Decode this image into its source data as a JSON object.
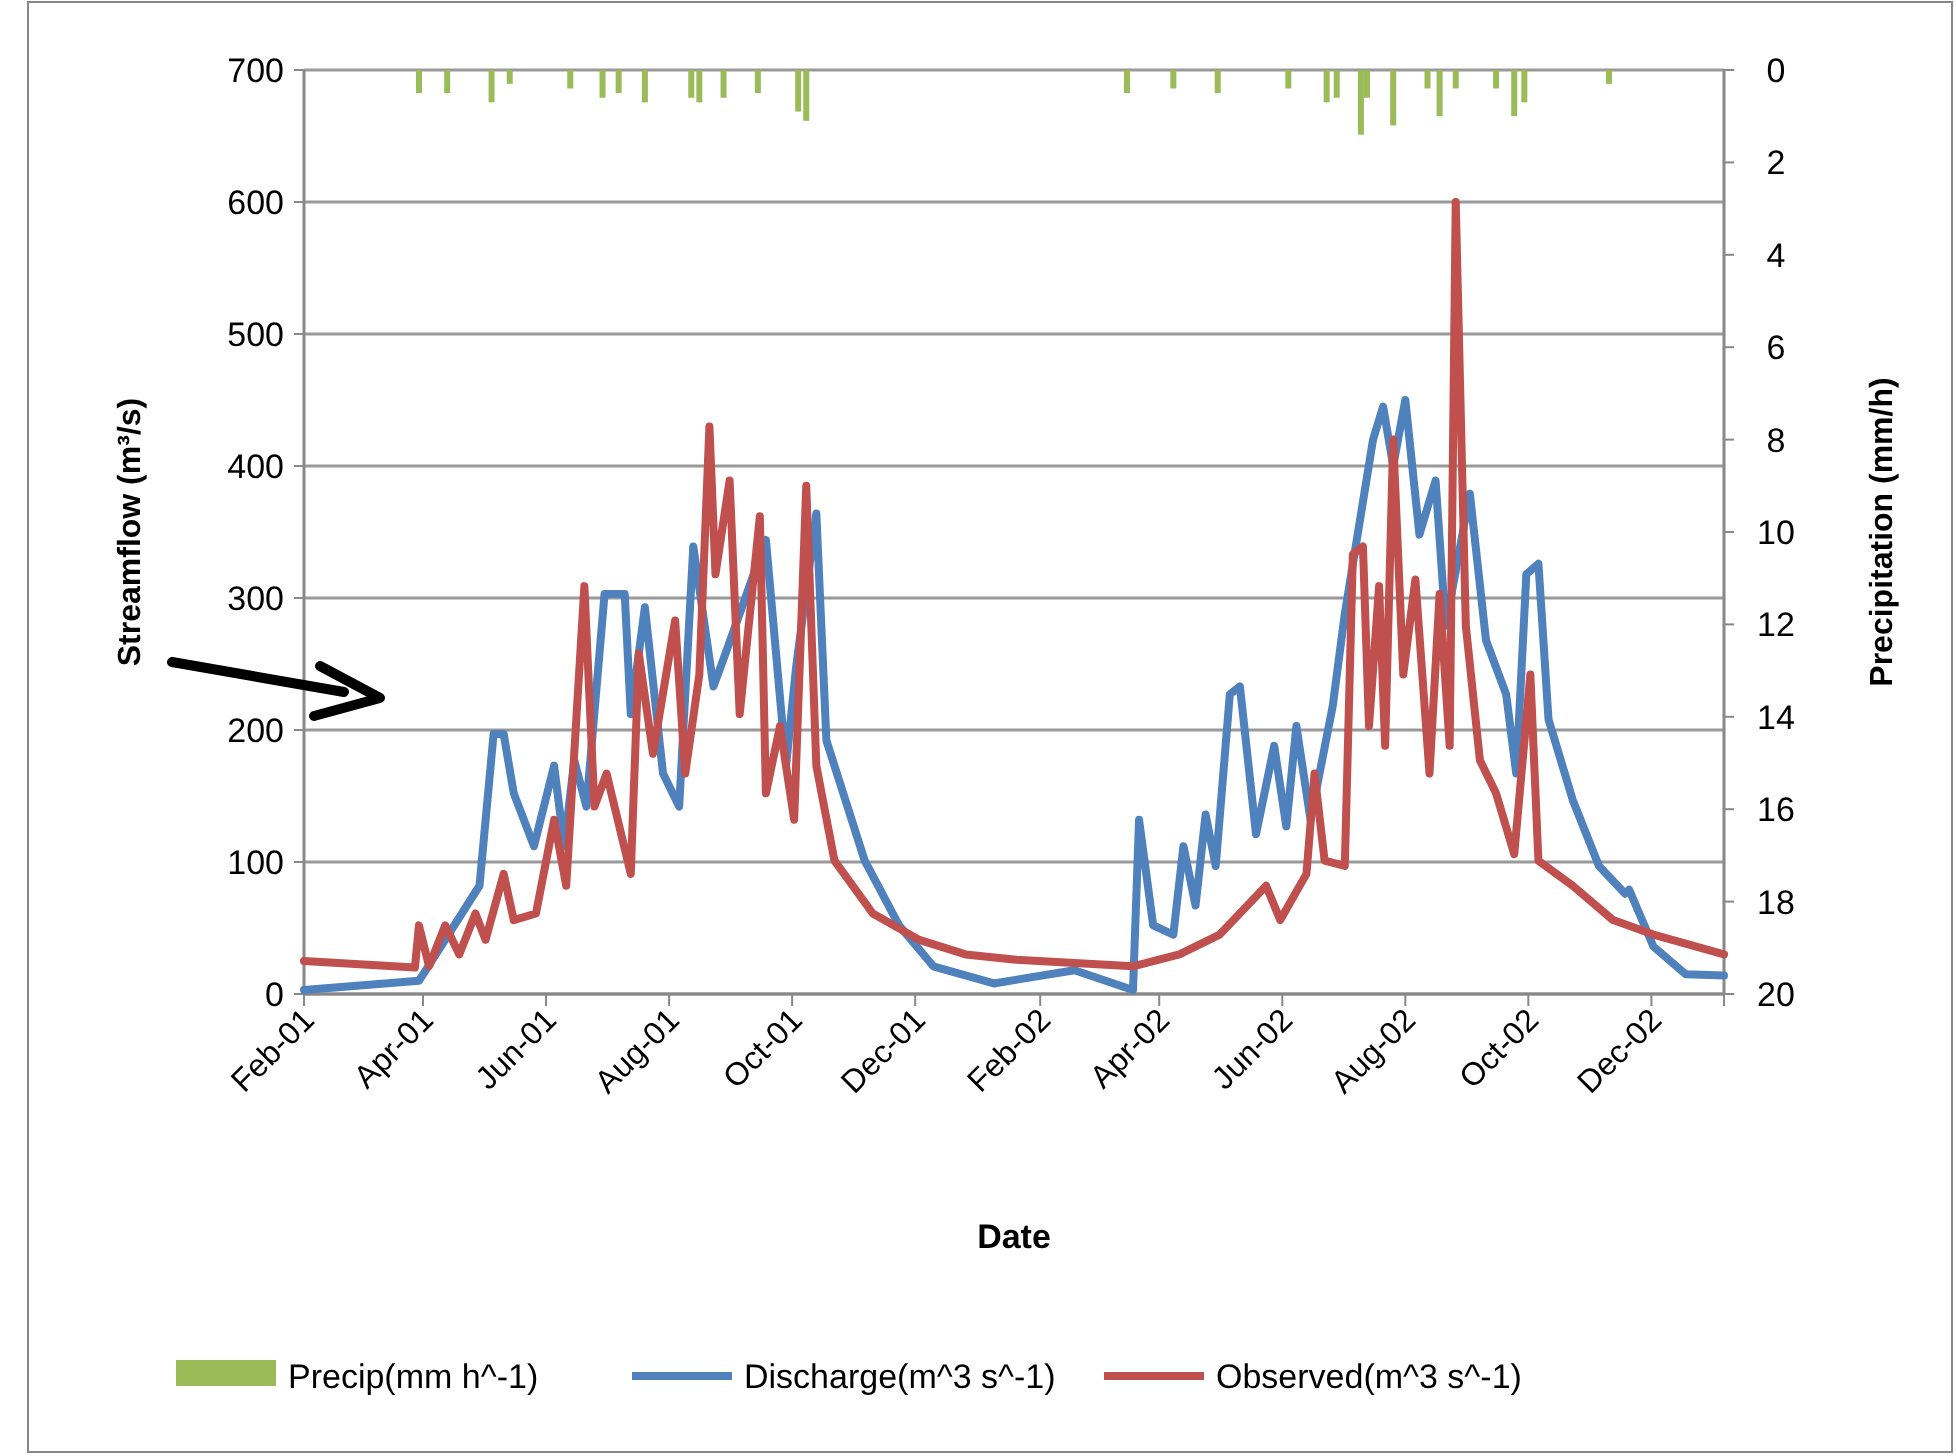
{
  "chart_data": {
    "type": "line",
    "xlabel": "Date",
    "ylabel": "Streamflow (m³/s)",
    "y2label": "Precipitation (mm/h)",
    "xlim": [
      "2001-02-01",
      "2003-01-06"
    ],
    "xticks": [
      {
        "value": "2001-02-01",
        "label": "Feb-01"
      },
      {
        "value": "2001-04-01",
        "label": "Apr-01"
      },
      {
        "value": "2001-06-01",
        "label": "Jun-01"
      },
      {
        "value": "2001-08-01",
        "label": "Aug-01"
      },
      {
        "value": "2001-10-01",
        "label": "Oct-01"
      },
      {
        "value": "2001-12-01",
        "label": "Dec-01"
      },
      {
        "value": "2002-02-01",
        "label": "Feb-02"
      },
      {
        "value": "2002-04-01",
        "label": "Apr-02"
      },
      {
        "value": "2002-06-01",
        "label": "Jun-02"
      },
      {
        "value": "2002-08-01",
        "label": "Aug-02"
      },
      {
        "value": "2002-10-01",
        "label": "Oct-02"
      },
      {
        "value": "2002-12-01",
        "label": "Dec-02"
      }
    ],
    "ylim": [
      0,
      700
    ],
    "yticks": [
      0,
      100,
      200,
      300,
      400,
      500,
      600,
      700
    ],
    "y2lim": [
      20,
      0
    ],
    "y2ticks": [
      0,
      2,
      4,
      6,
      8,
      10,
      12,
      14,
      16,
      18,
      20
    ],
    "grid": "y",
    "legend": "bottom",
    "line_style": "solid",
    "series": [
      {
        "name": "Precip(mm h^-1)",
        "type": "bar",
        "axis": "y2",
        "color": "#9bbb59",
        "x": [
          "2001-03-30",
          "2001-04-13",
          "2001-05-05",
          "2001-05-14",
          "2001-06-13",
          "2001-06-29",
          "2001-07-07",
          "2001-07-20",
          "2001-08-12",
          "2001-08-16",
          "2001-08-28",
          "2001-09-14",
          "2001-10-04",
          "2001-10-08",
          "2002-03-16",
          "2002-04-08",
          "2002-04-30",
          "2002-06-04",
          "2002-06-23",
          "2002-06-28",
          "2002-07-10",
          "2002-07-13",
          "2002-07-26",
          "2002-08-12",
          "2002-08-18",
          "2002-08-26",
          "2002-09-15",
          "2002-09-24",
          "2002-09-29",
          "2002-11-10"
        ],
        "values": [
          0.5,
          0.5,
          0.7,
          0.3,
          0.4,
          0.6,
          0.5,
          0.7,
          0.6,
          0.7,
          0.6,
          0.5,
          0.9,
          1.1,
          0.5,
          0.4,
          0.5,
          0.4,
          0.7,
          0.6,
          1.4,
          0.6,
          1.2,
          0.4,
          1.0,
          0.4,
          0.4,
          1.0,
          0.7,
          0.3
        ]
      },
      {
        "name": "Discharge(m^3 s^-1)",
        "color": "#4f81bd",
        "x": [
          "2001-02-01",
          "2001-03-30",
          "2001-04-29",
          "2001-05-06",
          "2001-05-11",
          "2001-05-16",
          "2001-05-26",
          "2001-06-05",
          "2001-06-10",
          "2001-06-15",
          "2001-06-21",
          "2001-06-30",
          "2001-07-10",
          "2001-07-13",
          "2001-07-20",
          "2001-07-29",
          "2001-08-06",
          "2001-08-13",
          "2001-08-23",
          "2001-08-29",
          "2001-09-18",
          "2001-09-28",
          "2001-10-03",
          "2001-10-13",
          "2001-10-18",
          "2001-11-06",
          "2001-11-23",
          "2001-12-10",
          "2002-01-09",
          "2002-02-18",
          "2002-03-19",
          "2002-03-22",
          "2002-03-29",
          "2002-04-08",
          "2002-04-13",
          "2002-04-19",
          "2002-04-24",
          "2002-04-29",
          "2002-05-06",
          "2002-05-11",
          "2002-05-19",
          "2002-05-28",
          "2002-06-03",
          "2002-06-08",
          "2002-06-15",
          "2002-06-26",
          "2002-07-02",
          "2002-07-16",
          "2002-07-21",
          "2002-07-26",
          "2002-08-01",
          "2002-08-08",
          "2002-08-16",
          "2002-08-21",
          "2002-09-02",
          "2002-09-10",
          "2002-09-20",
          "2002-09-25",
          "2002-09-30",
          "2002-10-06",
          "2002-10-11",
          "2002-10-23",
          "2002-11-05",
          "2002-11-18",
          "2002-11-20",
          "2002-12-02",
          "2002-12-18",
          "2003-01-06"
        ],
        "values": [
          3,
          10,
          82,
          197,
          197,
          152,
          112,
          173,
          112,
          177,
          142,
          303,
          303,
          212,
          293,
          167,
          142,
          339,
          233,
          258,
          344,
          173,
          248,
          364,
          192,
          101,
          52,
          21,
          8,
          18,
          3,
          132,
          52,
          45,
          112,
          67,
          136,
          97,
          227,
          233,
          121,
          188,
          127,
          203,
          132,
          218,
          288,
          420,
          445,
          400,
          450,
          348,
          389,
          279,
          379,
          268,
          227,
          167,
          318,
          326,
          208,
          147,
          97,
          76,
          79,
          36,
          15,
          14
        ]
      },
      {
        "name": "Observed(m^3 s^-1)",
        "color": "#c0504d",
        "x": [
          "2001-02-01",
          "2001-03-28",
          "2001-03-30",
          "2001-04-04",
          "2001-04-12",
          "2001-04-19",
          "2001-04-27",
          "2001-05-02",
          "2001-05-11",
          "2001-05-16",
          "2001-05-27",
          "2001-06-05",
          "2001-06-11",
          "2001-06-20",
          "2001-06-25",
          "2001-07-01",
          "2001-07-13",
          "2001-07-17",
          "2001-07-24",
          "2001-08-04",
          "2001-08-09",
          "2001-08-16",
          "2001-08-21",
          "2001-08-24",
          "2001-08-31",
          "2001-09-05",
          "2001-09-15",
          "2001-09-18",
          "2001-09-25",
          "2001-10-02",
          "2001-10-08",
          "2001-10-13",
          "2001-10-22",
          "2001-11-10",
          "2001-12-03",
          "2001-12-26",
          "2002-01-20",
          "2002-03-19",
          "2002-04-11",
          "2002-05-01",
          "2002-05-24",
          "2002-05-31",
          "2002-06-13",
          "2002-06-17",
          "2002-06-22",
          "2002-07-02",
          "2002-07-06",
          "2002-07-11",
          "2002-07-14",
          "2002-07-19",
          "2002-07-22",
          "2002-07-26",
          "2002-07-31",
          "2002-08-06",
          "2002-08-13",
          "2002-08-18",
          "2002-08-23",
          "2002-08-26",
          "2002-08-31",
          "2002-09-07",
          "2002-09-15",
          "2002-09-24",
          "2002-10-02",
          "2002-10-06",
          "2002-10-23",
          "2002-11-12",
          "2002-12-02",
          "2003-01-06"
        ],
        "values": [
          25,
          20,
          52,
          21,
          52,
          30,
          61,
          41,
          91,
          56,
          61,
          132,
          82,
          309,
          142,
          167,
          91,
          258,
          182,
          283,
          167,
          242,
          430,
          318,
          389,
          212,
          362,
          152,
          203,
          132,
          385,
          173,
          101,
          61,
          41,
          30,
          26,
          21,
          30,
          45,
          82,
          56,
          91,
          167,
          101,
          97,
          333,
          339,
          203,
          309,
          188,
          420,
          242,
          314,
          167,
          303,
          188,
          600,
          279,
          177,
          152,
          106,
          242,
          101,
          82,
          56,
          45,
          30
        ]
      }
    ]
  }
}
